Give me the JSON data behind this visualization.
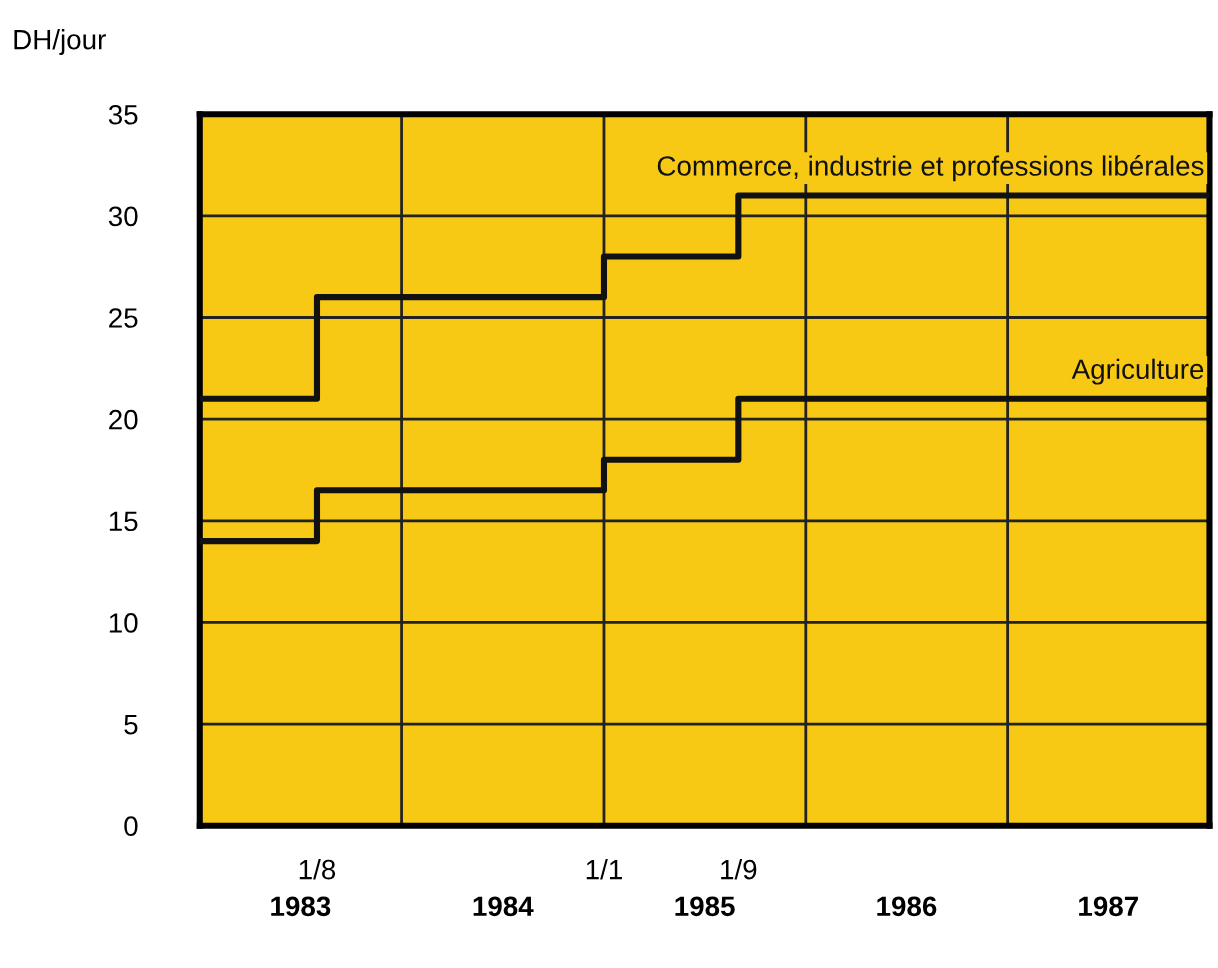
{
  "chart_data": {
    "type": "step",
    "ylabel": "DH/jour",
    "series": [
      {
        "name": "Commerce, industrie et professions libérales",
        "color": "#111111",
        "x": [
          "1983-01-01",
          "1983-08-01",
          "1985-01-01",
          "1985-09-01",
          "1988-01-01"
        ],
        "values": [
          21,
          26,
          28,
          31,
          31
        ]
      },
      {
        "name": "Agriculture",
        "color": "#111111",
        "x": [
          "1983-01-01",
          "1983-08-01",
          "1985-01-01",
          "1985-09-01",
          "1988-01-01"
        ],
        "values": [
          14,
          16.5,
          18,
          21,
          21
        ]
      }
    ],
    "xlim": [
      "1983-01-01",
      "1988-01-01"
    ],
    "xticks": [
      {
        "value": "1983-08-01",
        "label": "1/8"
      },
      {
        "value": "1985-01-01",
        "label": "1/1"
      },
      {
        "value": "1985-09-01",
        "label": "1/9"
      }
    ],
    "x2lim": [
      "1983-01-01",
      "1988-01-01"
    ],
    "x2ticks": [
      {
        "value": "1983-07-02",
        "label": "1983"
      },
      {
        "value": "1984-07-02",
        "label": "1984"
      },
      {
        "value": "1985-07-02",
        "label": "1985"
      },
      {
        "value": "1986-07-02",
        "label": "1986"
      },
      {
        "value": "1987-07-02",
        "label": "1987"
      }
    ],
    "ylim": [
      0,
      35
    ],
    "yticks": [
      0,
      5,
      10,
      15,
      20,
      25,
      30,
      35
    ],
    "grid": true,
    "legend": false,
    "line_style": "solid",
    "marker": "none"
  }
}
